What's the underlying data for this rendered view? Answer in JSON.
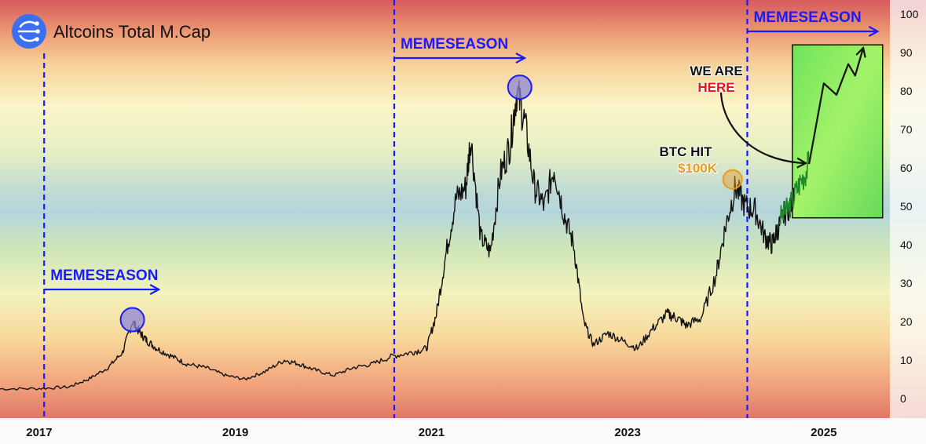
{
  "header": {
    "title": "Altcoins Total M.Cap",
    "logo_icon": "altcoin-network-logo-icon"
  },
  "colors": {
    "season_blue": "#1a1aff",
    "circle_fill": "#8f86d6",
    "btc_orange": "#e89a1e",
    "here_red": "#e8141a",
    "projection_green": "#7fea5e",
    "price_line": "#111111"
  },
  "annotations": {
    "memeseason_labels": [
      "MEMESEASON",
      "MEMESEASON",
      "MEMESEASON"
    ],
    "we_are": "WE ARE",
    "here": "HERE",
    "btc_hit": "BTC HIT",
    "btc_value": "$100K"
  },
  "chart_data": {
    "type": "line",
    "title": "Altcoins Total M.Cap",
    "xlabel": "",
    "ylabel": "",
    "ylim": [
      -2,
      100
    ],
    "yticks": [
      "0",
      "10",
      "20",
      "30",
      "40",
      "50",
      "60",
      "70",
      "80",
      "90",
      "100"
    ],
    "x_axis_type": "year",
    "xlim": [
      2016.6,
      2025.65
    ],
    "xticks": [
      "2017",
      "2019",
      "2021",
      "2023",
      "2025"
    ],
    "grid": false,
    "series": [
      {
        "values_x": [
          2016.6,
          2017.0,
          2017.3,
          2017.5,
          2017.7,
          2017.85,
          2017.95,
          2018.03,
          2018.1,
          2018.2,
          2018.35,
          2018.5,
          2018.7,
          2018.9,
          2019.1,
          2019.3,
          2019.5,
          2019.65,
          2019.8,
          2020.0,
          2020.2,
          2020.4,
          2020.6,
          2020.8,
          2020.95,
          2021.05,
          2021.15,
          2021.25,
          2021.35,
          2021.4,
          2021.5,
          2021.6,
          2021.7,
          2021.8,
          2021.87,
          2021.95,
          2022.05,
          2022.15,
          2022.25,
          2022.35,
          2022.45,
          2022.55,
          2022.65,
          2022.8,
          2022.95,
          2023.1,
          2023.25,
          2023.4,
          2023.5,
          2023.6,
          2023.75,
          2023.9,
          2024.0,
          2024.1,
          2024.2,
          2024.3,
          2024.4,
          2024.47,
          2024.53,
          2024.6,
          2024.7
        ],
        "values_y": [
          2.5,
          2.6,
          3.0,
          5.0,
          8.0,
          12.0,
          20.0,
          17.0,
          15.0,
          13.0,
          11.0,
          9.0,
          8.0,
          6.0,
          5.0,
          7.0,
          10.0,
          9.0,
          7.5,
          6.0,
          8.0,
          9.0,
          11.0,
          12.0,
          13.0,
          22.0,
          38.0,
          52.0,
          55.0,
          68.0,
          42.0,
          38.0,
          58.0,
          66.0,
          80.0,
          72.0,
          55.0,
          50.0,
          60.0,
          48.0,
          40.0,
          20.0,
          14.0,
          17.0,
          15.0,
          13.0,
          18.0,
          22.0,
          21.0,
          19.0,
          21.0,
          32.0,
          45.0,
          55.0,
          50.0,
          49.0,
          42.0,
          40.0,
          44.0,
          48.0,
          52.0
        ]
      },
      {
        "values_x": [
          2024.55,
          2024.65,
          2024.75,
          2024.85
        ],
        "values_y": [
          47.0,
          50.0,
          56.0,
          61.0
        ]
      }
    ],
    "projection": {
      "values_x": [
        2024.85,
        2025.0,
        2025.13,
        2025.25,
        2025.32,
        2025.4
      ],
      "values_y": [
        61.0,
        82.0,
        79.0,
        87.0,
        84.0,
        91.0
      ]
    },
    "projection_box": {
      "x": [
        2024.68,
        2025.6
      ],
      "y": [
        47.0,
        92.0
      ]
    },
    "memeseason_starts": [
      2017.05,
      2020.62,
      2024.22
    ],
    "peak_markers": [
      {
        "x": 2017.95,
        "y": 20.5
      },
      {
        "x": 2021.9,
        "y": 81.0
      }
    ],
    "btc_marker": {
      "x": 2024.07,
      "y": 57.0
    }
  }
}
